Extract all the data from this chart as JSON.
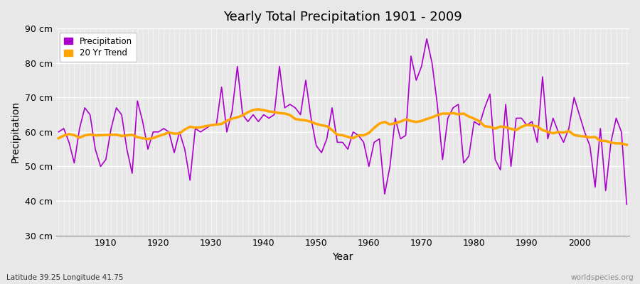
{
  "title": "Yearly Total Precipitation 1901 - 2009",
  "xlabel": "Year",
  "ylabel": "Precipitation",
  "subtitle": "Latitude 39.25 Longitude 41.75",
  "watermark": "worldspecies.org",
  "precipitation_color": "#AA00CC",
  "trend_color": "#FFA500",
  "bg_color": "#E8E8E8",
  "grid_color": "#FFFFFF",
  "ylim": [
    30,
    90
  ],
  "yticks": [
    30,
    40,
    50,
    60,
    70,
    80,
    90
  ],
  "xticks": [
    1910,
    1920,
    1930,
    1940,
    1950,
    1960,
    1970,
    1980,
    1990,
    2000
  ],
  "years": [
    1901,
    1902,
    1903,
    1904,
    1905,
    1906,
    1907,
    1908,
    1909,
    1910,
    1911,
    1912,
    1913,
    1914,
    1915,
    1916,
    1917,
    1918,
    1919,
    1920,
    1921,
    1922,
    1923,
    1924,
    1925,
    1926,
    1927,
    1928,
    1929,
    1930,
    1931,
    1932,
    1933,
    1934,
    1935,
    1936,
    1937,
    1938,
    1939,
    1940,
    1941,
    1942,
    1943,
    1944,
    1945,
    1946,
    1947,
    1948,
    1949,
    1950,
    1951,
    1952,
    1953,
    1954,
    1955,
    1956,
    1957,
    1958,
    1959,
    1960,
    1961,
    1962,
    1963,
    1964,
    1965,
    1966,
    1967,
    1968,
    1969,
    1970,
    1971,
    1972,
    1973,
    1974,
    1975,
    1976,
    1977,
    1978,
    1979,
    1980,
    1981,
    1982,
    1983,
    1984,
    1985,
    1986,
    1987,
    1988,
    1989,
    1990,
    1991,
    1992,
    1993,
    1994,
    1995,
    1996,
    1997,
    1998,
    1999,
    2000,
    2001,
    2002,
    2003,
    2004,
    2005,
    2006,
    2007,
    2008,
    2009
  ],
  "precip": [
    60,
    61,
    57,
    51,
    61,
    67,
    65,
    55,
    50,
    52,
    61,
    67,
    65,
    55,
    48,
    69,
    63,
    55,
    60,
    60,
    61,
    60,
    54,
    60,
    55,
    46,
    61,
    60,
    61,
    62,
    62,
    73,
    60,
    66,
    79,
    65,
    63,
    65,
    63,
    65,
    64,
    65,
    79,
    67,
    68,
    67,
    65,
    75,
    64,
    56,
    54,
    58,
    67,
    57,
    57,
    55,
    60,
    59,
    57,
    50,
    57,
    58,
    42,
    50,
    64,
    58,
    59,
    82,
    75,
    79,
    87,
    80,
    68,
    52,
    64,
    67,
    68,
    51,
    53,
    63,
    62,
    67,
    71,
    52,
    49,
    68,
    50,
    64,
    64,
    62,
    63,
    57,
    76,
    58,
    64,
    60,
    57,
    61,
    70,
    65,
    60,
    56,
    44,
    61,
    43,
    57,
    64,
    60,
    39
  ],
  "trend_window": 20,
  "figwidth": 9.0,
  "figheight": 4.0,
  "dpi": 100
}
